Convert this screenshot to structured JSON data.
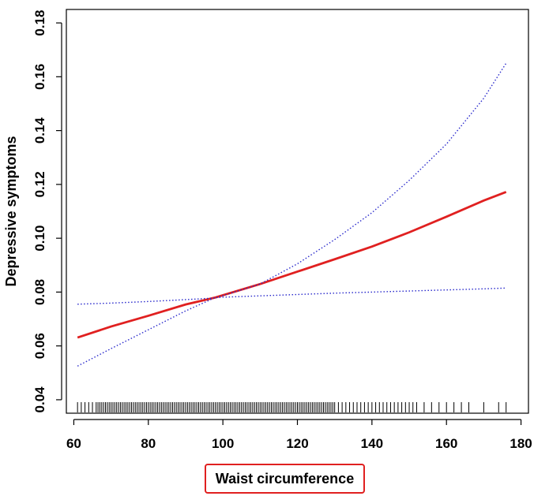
{
  "chart_data": {
    "type": "line",
    "title": "",
    "xlabel": "Waist circumference",
    "ylabel": "Depressive symptoms",
    "xlim": [
      58,
      182
    ],
    "ylim": [
      0.035,
      0.185
    ],
    "xticks": [
      60,
      80,
      100,
      120,
      140,
      160,
      180
    ],
    "yticks": [
      0.04,
      0.06,
      0.08,
      0.1,
      0.12,
      0.14,
      0.16,
      0.18
    ],
    "ytick_labels": [
      "0.04",
      "0.06",
      "0.08",
      "0.10",
      "0.12",
      "0.14",
      "0.16",
      "0.18"
    ],
    "grid": false,
    "series": [
      {
        "role": "estimate",
        "color": "#e02020",
        "style": "solid",
        "x": [
          61,
          70,
          80,
          90,
          98,
          110,
          120,
          130,
          140,
          150,
          160,
          170,
          176
        ],
        "y": [
          0.0631,
          0.0672,
          0.0712,
          0.0754,
          0.078,
          0.083,
          0.0876,
          0.0922,
          0.0969,
          0.1022,
          0.108,
          0.114,
          0.1172
        ]
      },
      {
        "role": "upper-ci",
        "color": "#2a2acc",
        "style": "dotted",
        "x": [
          61,
          70,
          80,
          90,
          98,
          110,
          120,
          130,
          140,
          150,
          160,
          170,
          176
        ],
        "y": [
          0.0755,
          0.0759,
          0.0765,
          0.0772,
          0.0778,
          0.083,
          0.0905,
          0.0995,
          0.1095,
          0.1215,
          0.135,
          0.152,
          0.165
        ]
      },
      {
        "role": "lower-ci",
        "color": "#2a2acc",
        "style": "dotted",
        "x": [
          61,
          70,
          80,
          90,
          98,
          110,
          120,
          130,
          140,
          150,
          160,
          170,
          176
        ],
        "y": [
          0.0525,
          0.059,
          0.066,
          0.073,
          0.078,
          0.0786,
          0.0791,
          0.0796,
          0.08,
          0.0804,
          0.0808,
          0.0812,
          0.0815
        ]
      }
    ],
    "rug": {
      "color": "#000000",
      "x": [
        61,
        62,
        63,
        64,
        65,
        66,
        66.5,
        67,
        67.5,
        68,
        68.5,
        69,
        69.5,
        70,
        70.5,
        71,
        71.5,
        72,
        72.5,
        73,
        73.5,
        74,
        74.5,
        75,
        75.5,
        76,
        76.5,
        77,
        77.5,
        78,
        78.5,
        79,
        79.5,
        80,
        80.5,
        81,
        81.5,
        82,
        82.5,
        83,
        83.5,
        84,
        84.5,
        85,
        85.5,
        86,
        86.5,
        87,
        87.5,
        88,
        88.5,
        89,
        89.5,
        90,
        90.5,
        91,
        91.5,
        92,
        92.5,
        93,
        93.5,
        94,
        94.5,
        95,
        95.5,
        96,
        96.5,
        97,
        97.5,
        98,
        98.5,
        99,
        99.5,
        100,
        100.5,
        101,
        101.5,
        102,
        102.5,
        103,
        103.5,
        104,
        104.5,
        105,
        105.5,
        106,
        106.5,
        107,
        107.5,
        108,
        108.5,
        109,
        109.5,
        110,
        110.5,
        111,
        111.5,
        112,
        112.5,
        113,
        113.5,
        114,
        114.5,
        115,
        115.5,
        116,
        116.5,
        117,
        117.5,
        118,
        118.5,
        119,
        119.5,
        120,
        120.5,
        121,
        121.5,
        122,
        122.5,
        123,
        123.5,
        124,
        124.5,
        125,
        125.5,
        126,
        126.5,
        127,
        127.5,
        128,
        128.5,
        129,
        129.5,
        130,
        131,
        132,
        133,
        134,
        135,
        136,
        137,
        138,
        139,
        140,
        141,
        142,
        143,
        144,
        145,
        146,
        147,
        148,
        149,
        150,
        151,
        152,
        154,
        156,
        158,
        160,
        162,
        164,
        166,
        170,
        174,
        176
      ]
    }
  }
}
